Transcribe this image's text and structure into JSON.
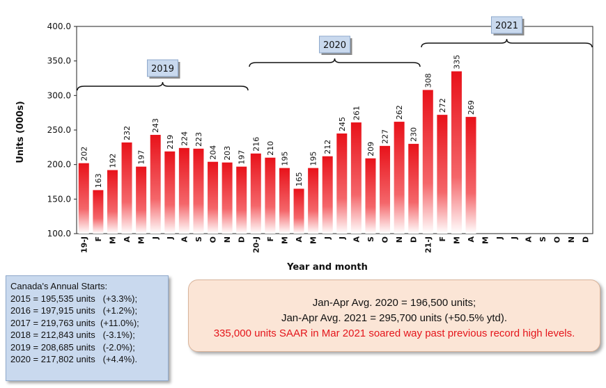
{
  "chart_data": {
    "type": "bar",
    "ylabel": "Units (000s)",
    "xlabel": "Year and month",
    "ylim": [
      100,
      400
    ],
    "yticks": [
      "100.0",
      "150.0",
      "200.0",
      "250.0",
      "300.0",
      "350.0",
      "400.0"
    ],
    "categories": [
      "19-J",
      "F",
      "M",
      "A",
      "M",
      "J",
      "J",
      "A",
      "S",
      "O",
      "N",
      "D",
      "20-J",
      "F",
      "M",
      "A",
      "M",
      "J",
      "J",
      "A",
      "S",
      "O",
      "N",
      "D",
      "21-J",
      "F",
      "M",
      "A",
      "M",
      "J",
      "J",
      "A",
      "S",
      "O",
      "N",
      "D"
    ],
    "values": [
      202,
      163,
      192,
      232,
      197,
      243,
      219,
      224,
      223,
      204,
      203,
      197,
      216,
      210,
      195,
      165,
      195,
      212,
      245,
      261,
      209,
      227,
      262,
      230,
      308,
      272,
      335,
      269,
      null,
      null,
      null,
      null,
      null,
      null,
      null,
      null
    ],
    "bar_colors": {
      "top": "#e8121a",
      "bottom": "#ffffff"
    },
    "year_labels": [
      {
        "text": "2019",
        "from": 0,
        "to": 11,
        "level": "low"
      },
      {
        "text": "2020",
        "from": 12,
        "to": 23,
        "level": "mid"
      },
      {
        "text": "2021",
        "from": 24,
        "to": 35,
        "level": "high"
      }
    ]
  },
  "annual_starts": {
    "title": "Canada's Annual Starts:",
    "lines": [
      "2015 = 195,535 units   (+3.3%);",
      "2016 = 197,915 units   (+1.2%);",
      "2017 = 219,763 units  (+11.0%);",
      "2018 = 212,843 units   (-3.1%);",
      "2019 = 208,685 units   (-2.0%);",
      "2020 = 217,802 units   (+4.4%)."
    ]
  },
  "summary": {
    "line1": "Jan-Apr Avg. 2020 = 196,500 units;",
    "line2": "Jan-Apr Avg. 2021 = 295,700 units (+50.5% ytd).",
    "line3": "335,000 units SAAR in Mar 2021 soared way past previous record high levels."
  }
}
